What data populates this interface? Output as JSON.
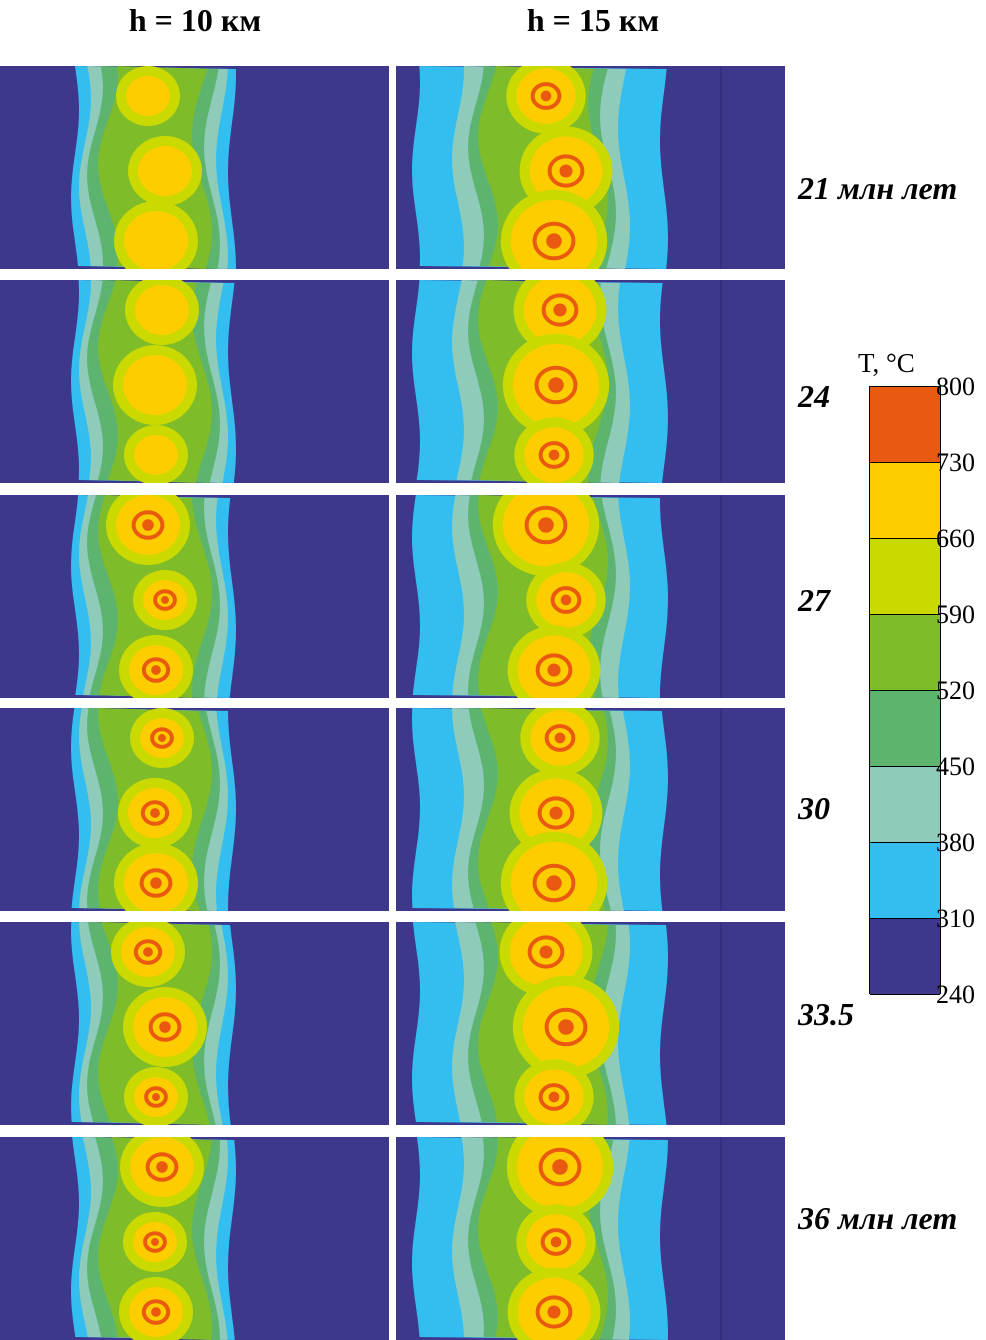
{
  "columns": [
    {
      "title": "h = 10 км"
    },
    {
      "title": "h = 15 км"
    }
  ],
  "times": [
    "21 млн лет",
    "24",
    "27",
    "30",
    "33.5",
    "36 млн лет"
  ],
  "legend": {
    "title": "T, °C",
    "ticks": [
      "800",
      "730",
      "660",
      "590",
      "520",
      "450",
      "380",
      "310",
      "240"
    ],
    "colors": [
      "#e95a10",
      "#fecd00",
      "#cad900",
      "#7fbc2a",
      "#5db46e",
      "#8ecbbb",
      "#34bef0",
      "#3d388b"
    ]
  }
}
